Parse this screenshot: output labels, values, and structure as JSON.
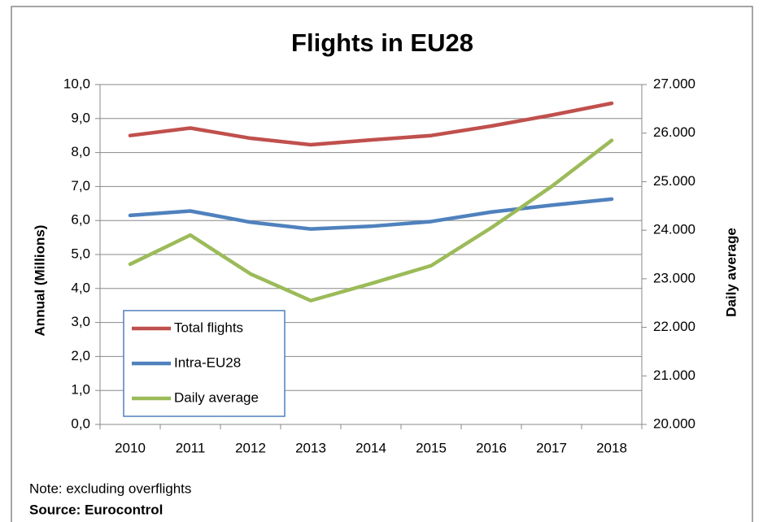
{
  "chart_data": {
    "type": "line",
    "title": "Flights in EU28",
    "categories": [
      "2010",
      "2011",
      "2012",
      "2013",
      "2014",
      "2015",
      "2016",
      "2017",
      "2018"
    ],
    "series": [
      {
        "name": "Total flights",
        "color": "#c0504d",
        "values": [
          8.5,
          8.72,
          8.42,
          8.23,
          8.37,
          8.5,
          8.78,
          9.1,
          9.45
        ]
      },
      {
        "name": "Intra-EU28",
        "color": "#4f81bd",
        "values": [
          6.15,
          6.28,
          5.95,
          5.75,
          5.83,
          5.97,
          6.25,
          6.45,
          6.63
        ]
      },
      {
        "name": "Daily average",
        "color": "#9bbb59",
        "axis": "y2",
        "values": [
          23300,
          23900,
          23100,
          22550,
          22900,
          23270,
          24050,
          24900,
          25850
        ]
      }
    ],
    "ylabel": "Annual (Millions)",
    "y2label": "Daily average",
    "ylim": [
      0,
      10
    ],
    "yticks": [
      {
        "value": 0,
        "label": "0,0"
      },
      {
        "value": 1,
        "label": "1,0"
      },
      {
        "value": 2,
        "label": "2,0"
      },
      {
        "value": 3,
        "label": "3,0"
      },
      {
        "value": 4,
        "label": "4,0"
      },
      {
        "value": 5,
        "label": "5,0"
      },
      {
        "value": 6,
        "label": "6,0"
      },
      {
        "value": 7,
        "label": "7,0"
      },
      {
        "value": 8,
        "label": "8,0"
      },
      {
        "value": 9,
        "label": "9,0"
      },
      {
        "value": 10,
        "label": "10,0"
      }
    ],
    "y2lim": [
      20000,
      27000
    ],
    "y2ticks": [
      {
        "value": 20000,
        "label": "20.000"
      },
      {
        "value": 21000,
        "label": "21.000"
      },
      {
        "value": 22000,
        "label": "22.000"
      },
      {
        "value": 23000,
        "label": "23.000"
      },
      {
        "value": 24000,
        "label": "24.000"
      },
      {
        "value": 25000,
        "label": "25.000"
      },
      {
        "value": 26000,
        "label": "26.000"
      },
      {
        "value": 27000,
        "label": "27.000"
      }
    ],
    "grid": true,
    "legend": "lower left",
    "note": "Note: excluding overflights",
    "source": "Source: Eurocontrol"
  }
}
